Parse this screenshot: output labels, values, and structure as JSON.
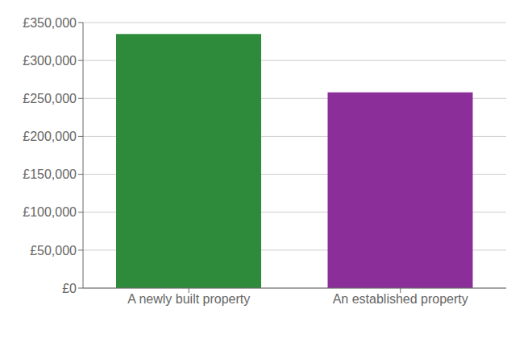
{
  "chart_data": {
    "type": "bar",
    "categories": [
      "A newly built property",
      "An established property"
    ],
    "values": [
      335000,
      258000
    ],
    "colors": [
      "#2e8b3c",
      "#8b2e9a"
    ],
    "ylim": [
      0,
      350000
    ],
    "yticks": [
      {
        "value": 0,
        "label": "£0"
      },
      {
        "value": 50000,
        "label": "£50,000"
      },
      {
        "value": 100000,
        "label": "£100,000"
      },
      {
        "value": 150000,
        "label": "£150,000"
      },
      {
        "value": 200000,
        "label": "£200,000"
      },
      {
        "value": 250000,
        "label": "£250,000"
      },
      {
        "value": 300000,
        "label": "£300,000"
      },
      {
        "value": 350000,
        "label": "£350,000"
      }
    ],
    "grid": true
  }
}
